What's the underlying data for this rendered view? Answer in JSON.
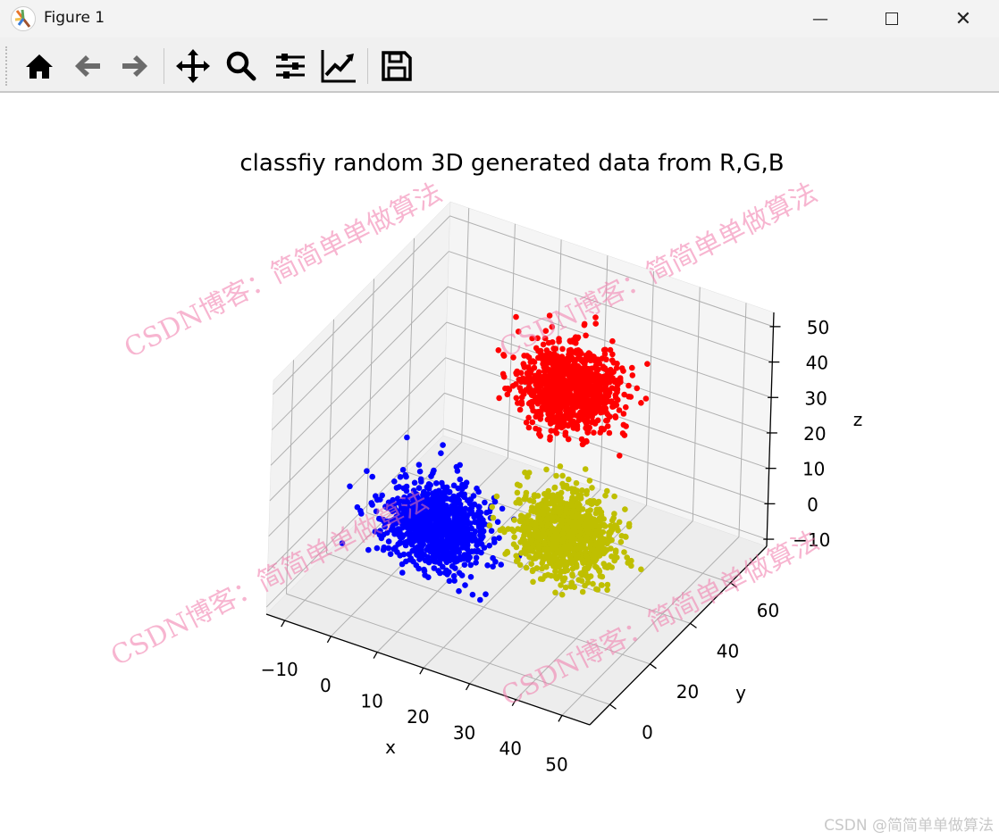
{
  "window": {
    "title": "Figure 1",
    "minimize_icon": "minimize-icon",
    "maximize_icon": "maximize-icon",
    "close_icon": "close-icon"
  },
  "toolbar": {
    "items": [
      "home-icon",
      "back-arrow-icon",
      "forward-arrow-icon",
      "pan-move-icon",
      "zoom-magnifier-icon",
      "configure-subplots-icon",
      "edit-axis-icon",
      "save-floppy-icon"
    ]
  },
  "watermark": {
    "text": "CSDN博客：简简单单做算法",
    "corner": "CSDN @简简单单做算法"
  },
  "chart_data": {
    "type": "scatter",
    "projection": "3d",
    "title": "classfiy random 3D generated data from R,G,B",
    "xlabel": "x",
    "ylabel": "y",
    "zlabel": "z",
    "xlim": [
      -14,
      56
    ],
    "ylim": [
      -10,
      78
    ],
    "zlim": [
      -12,
      54
    ],
    "xticks": [
      -10,
      0,
      10,
      20,
      30,
      40,
      50
    ],
    "yticks": [
      0,
      20,
      40,
      60
    ],
    "zticks": [
      -10,
      0,
      10,
      20,
      30,
      40,
      50
    ],
    "xtick_labels": [
      "−10",
      "0",
      "10",
      "20",
      "30",
      "40",
      "50"
    ],
    "ytick_labels": [
      "0",
      "20",
      "40",
      "60"
    ],
    "ztick_labels": [
      "−10",
      "0",
      "10",
      "20",
      "30",
      "40",
      "50"
    ],
    "grid": true,
    "series": [
      {
        "color": "#0000ff",
        "center": [
          6,
          28,
          0
        ],
        "std": 5,
        "count": 1000
      },
      {
        "color": "#bfbf00",
        "center": [
          28,
          41,
          0
        ],
        "std": 5,
        "count": 1000
      },
      {
        "color": "#ff0000",
        "center": [
          22,
          56,
          30
        ],
        "std": 5,
        "count": 1000
      }
    ]
  }
}
